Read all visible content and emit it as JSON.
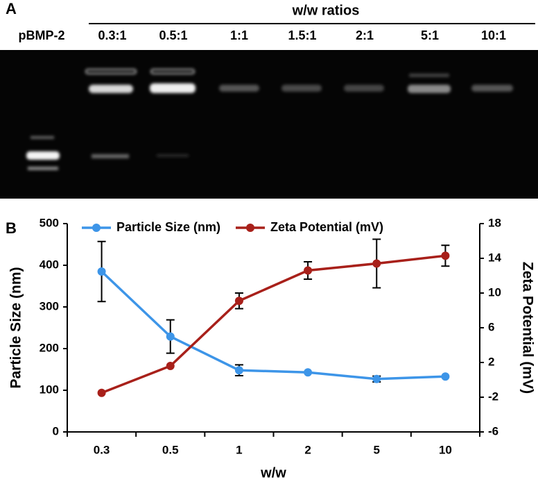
{
  "panel_a": {
    "label": "A",
    "header": "w/w ratios",
    "lanes": [
      "pBMP-2",
      "0.3:1",
      "0.5:1",
      "1:1",
      "1.5:1",
      "2:1",
      "5:1",
      "10:1"
    ]
  },
  "panel_b": {
    "label": "B"
  },
  "chart_data": {
    "type": "line",
    "categories": [
      "0.3",
      "0.5",
      "1",
      "2",
      "5",
      "10"
    ],
    "x_label": "w/w",
    "y_label": "Particle Size (nm)",
    "y2_label": "Zeta Potential (mV)",
    "ylim": [
      0,
      500
    ],
    "yticks": [
      0,
      100,
      200,
      300,
      400,
      500
    ],
    "y2lim": [
      -6,
      18
    ],
    "y2ticks": [
      -6,
      -2,
      2,
      6,
      10,
      14,
      18
    ],
    "legend": "top",
    "series": [
      {
        "name": "Particle Size (nm)",
        "color": "#3d95e8",
        "values": [
          385,
          229,
          148,
          143,
          127,
          133
        ],
        "errors": [
          72,
          40,
          13,
          null,
          7,
          null
        ]
      },
      {
        "name": "Zeta Potential (mV)",
        "color": "#a8201a",
        "axis": "y2",
        "values": [
          -1.5,
          1.6,
          9.1,
          12.6,
          13.4,
          14.3
        ],
        "errors": [
          null,
          null,
          0.9,
          1,
          2.8,
          1.2
        ]
      }
    ]
  }
}
